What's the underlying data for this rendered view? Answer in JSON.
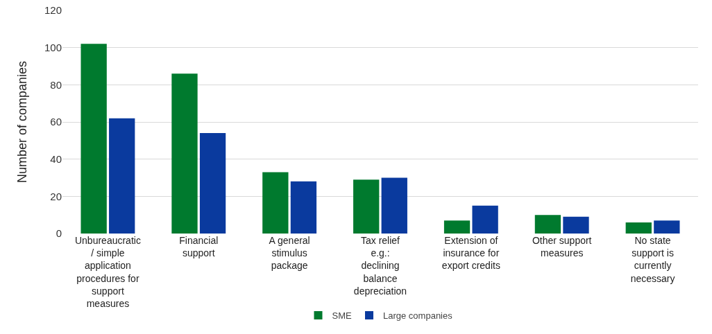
{
  "chart_data": {
    "type": "bar",
    "ylabel": "Number of companies",
    "categories": [
      "Unbureaucratic / simple application procedures for support measures",
      "Financial support",
      "A general stimulus package",
      "Tax relief e.g.: declining balance depreciation",
      "Extension of insurance for export credits",
      "Other support measures",
      "No state support is currently necessary"
    ],
    "series": [
      {
        "name": "SME",
        "color": "#007a2e",
        "values": [
          102,
          86,
          33,
          29,
          7,
          10,
          6
        ]
      },
      {
        "name": "Large companies",
        "color": "#0a3a9e",
        "values": [
          62,
          54,
          28,
          30,
          15,
          9,
          7
        ]
      }
    ],
    "ylim": [
      0,
      120
    ],
    "yticks": [
      0,
      20,
      40,
      60,
      80,
      100,
      120
    ],
    "grid": "y",
    "legend": "bottom"
  }
}
